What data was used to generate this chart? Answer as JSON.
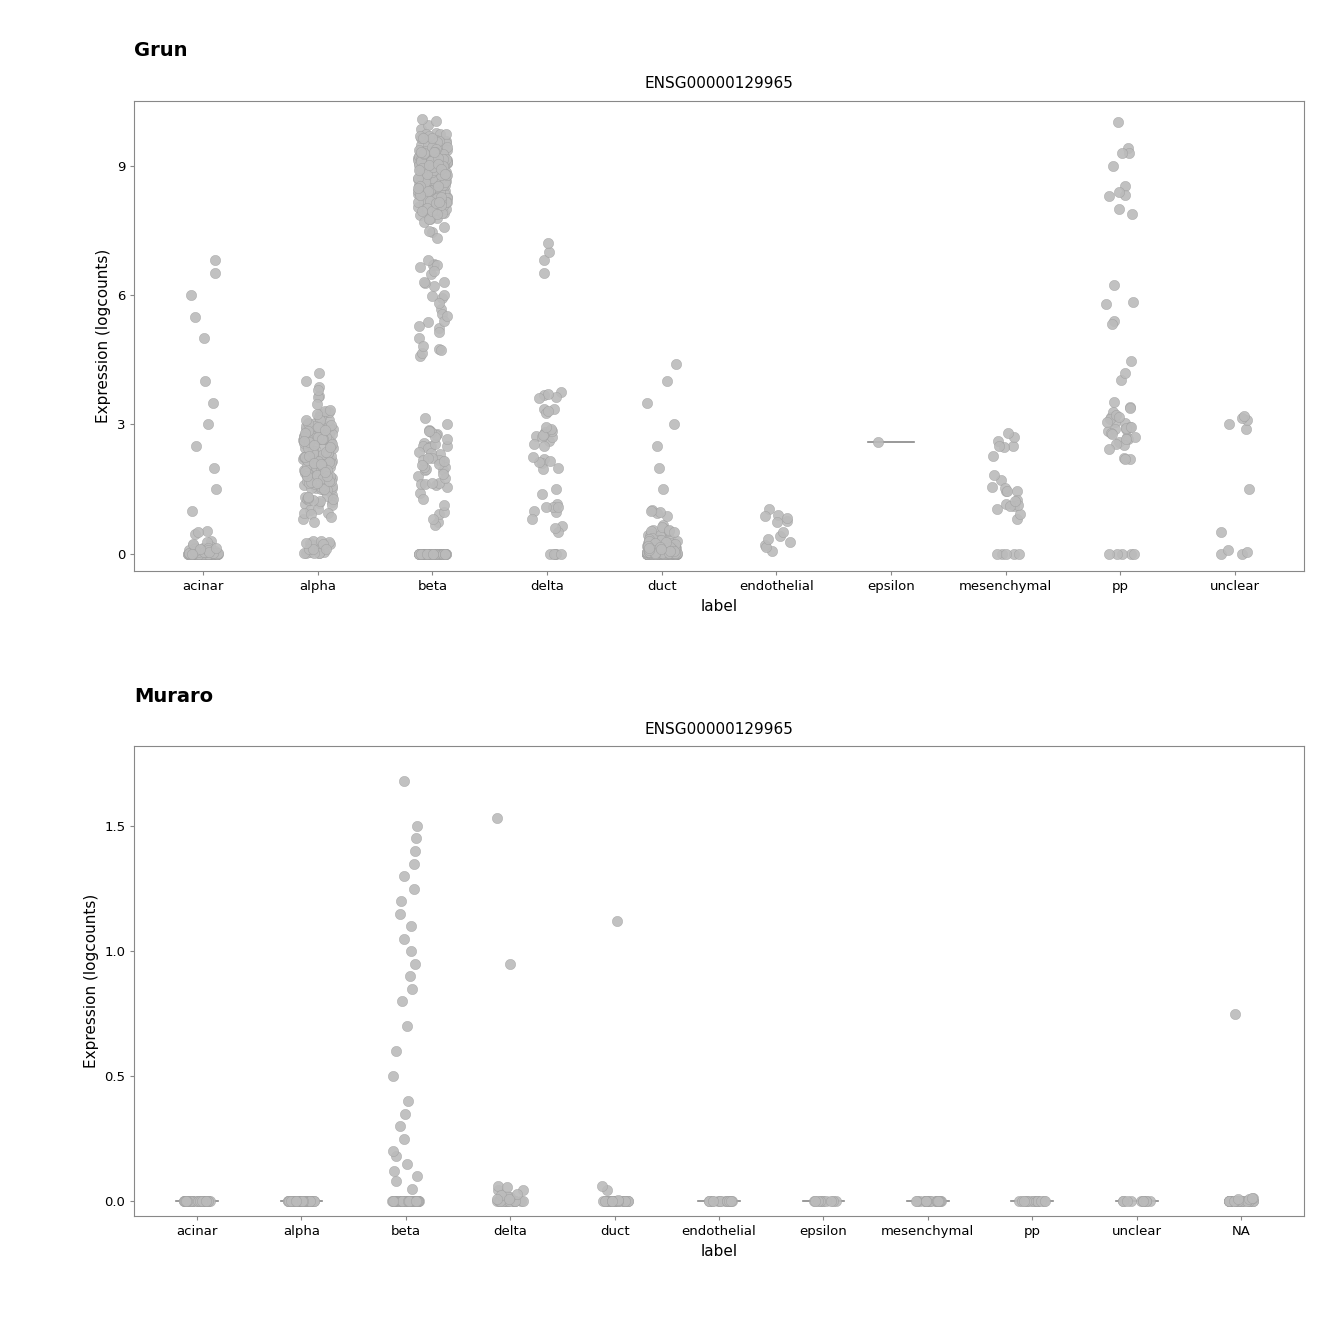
{
  "grun": {
    "title": "Grun",
    "gene": "ENSG00000129965",
    "ylabel": "Expression (logcounts)",
    "xlabel": "label",
    "categories": [
      "acinar",
      "alpha",
      "beta",
      "delta",
      "duct",
      "endothelial",
      "epsilon",
      "mesenchymal",
      "pp",
      "unclear"
    ],
    "ylim": [
      -0.4,
      10.5
    ],
    "yticks": [
      0,
      3,
      6,
      9
    ],
    "ytick_labels": [
      "0",
      "3",
      "6",
      "9"
    ]
  },
  "muraro": {
    "title": "Muraro",
    "gene": "ENSG00000129965",
    "ylabel": "Expression (logcounts)",
    "xlabel": "label",
    "categories": [
      "acinar",
      "alpha",
      "beta",
      "delta",
      "duct",
      "endothelial",
      "epsilon",
      "mesenchymal",
      "pp",
      "unclear",
      "NA"
    ],
    "ylim": [
      -0.06,
      1.82
    ],
    "yticks": [
      0.0,
      0.5,
      1.0,
      1.5
    ],
    "ytick_labels": [
      "0.0",
      "0.5",
      "1.0",
      "1.5"
    ]
  },
  "violin_fill": "#ffffff",
  "violin_edge_color": "#888888",
  "violin_fill_alpha": 0.0,
  "dot_color": "#bbbbbb",
  "dot_edge_color": "#999999",
  "panel_bg": "#d3d3d3",
  "panel_label_fontsize": 11,
  "axis_title_fontsize": 11,
  "tick_fontsize": 9.5,
  "dataset_title_fontsize": 14
}
